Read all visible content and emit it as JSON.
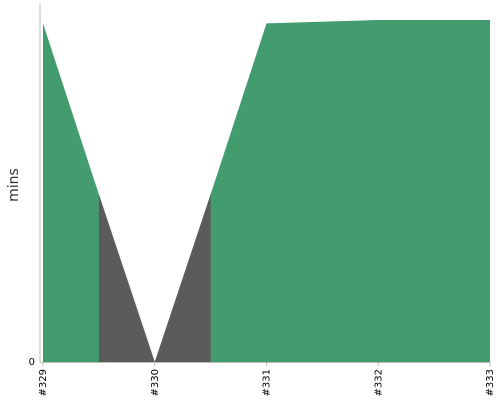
{
  "chart_data": {
    "type": "area",
    "title": "",
    "xlabel": "",
    "ylabel": "mins",
    "x": [
      "#329",
      "#330",
      "#331",
      "#332",
      "#333"
    ],
    "y_tick_labels": [
      "0"
    ],
    "ylim": [
      0,
      1
    ],
    "grid": false,
    "legend": "none",
    "series": [
      {
        "x": [
          329,
          329.5,
          330,
          330.5,
          331,
          332,
          333
        ],
        "values": [
          0.99,
          0.49,
          0,
          0.49,
          0.99,
          1.0,
          1.0
        ]
      }
    ],
    "highlight_x_ranges": [
      [
        329.5,
        330.5
      ]
    ],
    "colors": {
      "area": "#439c6e",
      "highlight": "#5b5b5b",
      "axis": "#bbbbbb"
    }
  }
}
